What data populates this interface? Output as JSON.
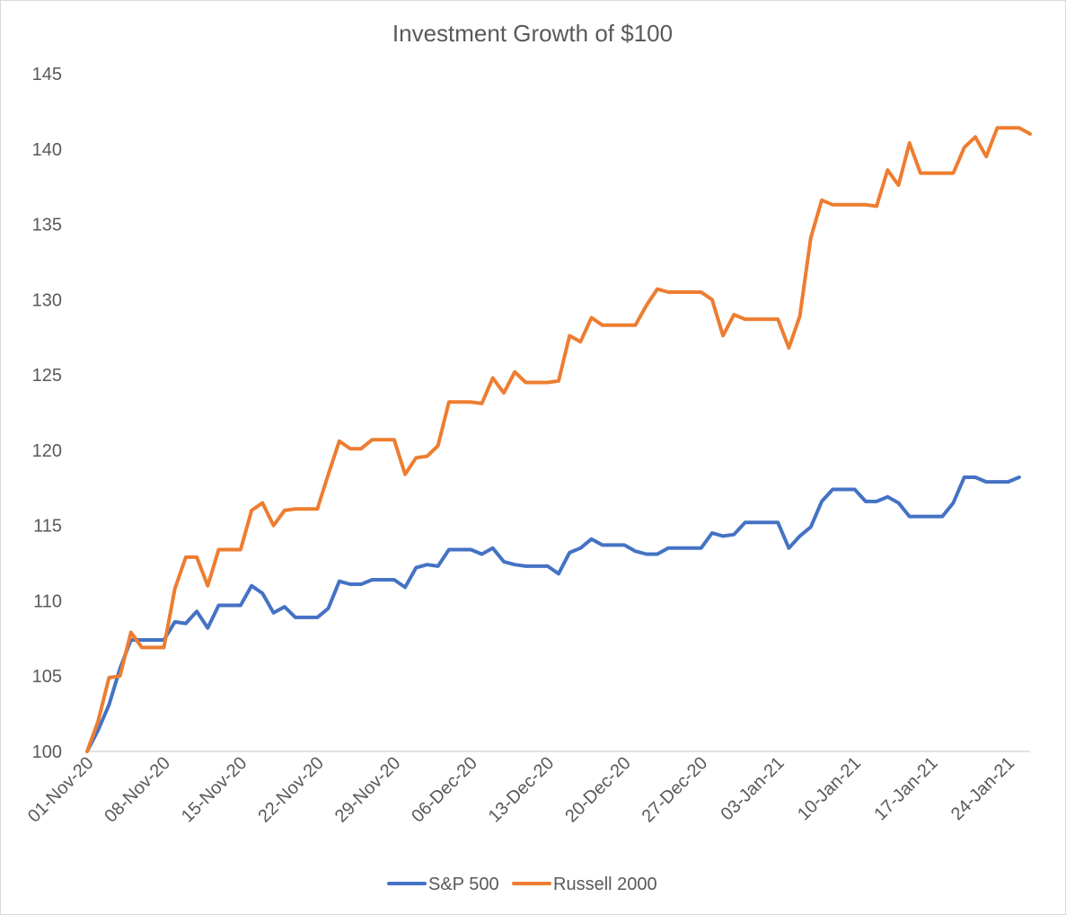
{
  "chart_data": {
    "type": "line",
    "title": "Investment Growth of $100",
    "xlabel": "",
    "ylabel": "",
    "ylim": [
      100,
      145
    ],
    "y_ticks": [
      100,
      105,
      110,
      115,
      120,
      125,
      130,
      135,
      140,
      145
    ],
    "grid": false,
    "legend_position": "bottom",
    "x_start": "01-Nov-20",
    "x_end": "26-Jan-21",
    "x_tick_labels": [
      "01-Nov-20",
      "08-Nov-20",
      "15-Nov-20",
      "22-Nov-20",
      "29-Nov-20",
      "06-Dec-20",
      "13-Dec-20",
      "20-Dec-20",
      "27-Dec-20",
      "03-Jan-21",
      "10-Jan-21",
      "17-Jan-21",
      "24-Jan-21"
    ],
    "series": [
      {
        "name": "S&P 500",
        "color": "#4472c4",
        "points": [
          [
            "01-Nov-20",
            100.0
          ],
          [
            "02-Nov-20",
            101.4
          ],
          [
            "03-Nov-20",
            103.1
          ],
          [
            "04-Nov-20",
            105.5
          ],
          [
            "05-Nov-20",
            107.4
          ],
          [
            "06-Nov-20",
            107.4
          ],
          [
            "07-Nov-20",
            107.4
          ],
          [
            "08-Nov-20",
            107.4
          ],
          [
            "09-Nov-20",
            108.6
          ],
          [
            "10-Nov-20",
            108.5
          ],
          [
            "11-Nov-20",
            109.3
          ],
          [
            "12-Nov-20",
            108.2
          ],
          [
            "13-Nov-20",
            109.7
          ],
          [
            "14-Nov-20",
            109.7
          ],
          [
            "15-Nov-20",
            109.7
          ],
          [
            "16-Nov-20",
            111.0
          ],
          [
            "17-Nov-20",
            110.5
          ],
          [
            "18-Nov-20",
            109.2
          ],
          [
            "19-Nov-20",
            109.6
          ],
          [
            "20-Nov-20",
            108.9
          ],
          [
            "21-Nov-20",
            108.9
          ],
          [
            "22-Nov-20",
            108.9
          ],
          [
            "23-Nov-20",
            109.5
          ],
          [
            "24-Nov-20",
            111.3
          ],
          [
            "25-Nov-20",
            111.1
          ],
          [
            "26-Nov-20",
            111.1
          ],
          [
            "27-Nov-20",
            111.4
          ],
          [
            "28-Nov-20",
            111.4
          ],
          [
            "29-Nov-20",
            111.4
          ],
          [
            "30-Nov-20",
            110.9
          ],
          [
            "01-Dec-20",
            112.2
          ],
          [
            "02-Dec-20",
            112.4
          ],
          [
            "03-Dec-20",
            112.3
          ],
          [
            "04-Dec-20",
            113.4
          ],
          [
            "05-Dec-20",
            113.4
          ],
          [
            "06-Dec-20",
            113.4
          ],
          [
            "07-Dec-20",
            113.1
          ],
          [
            "08-Dec-20",
            113.5
          ],
          [
            "09-Dec-20",
            112.6
          ],
          [
            "10-Dec-20",
            112.4
          ],
          [
            "11-Dec-20",
            112.3
          ],
          [
            "12-Dec-20",
            112.3
          ],
          [
            "13-Dec-20",
            112.3
          ],
          [
            "14-Dec-20",
            111.8
          ],
          [
            "15-Dec-20",
            113.2
          ],
          [
            "16-Dec-20",
            113.5
          ],
          [
            "17-Dec-20",
            114.1
          ],
          [
            "18-Dec-20",
            113.7
          ],
          [
            "19-Dec-20",
            113.7
          ],
          [
            "20-Dec-20",
            113.7
          ],
          [
            "21-Dec-20",
            113.3
          ],
          [
            "22-Dec-20",
            113.1
          ],
          [
            "23-Dec-20",
            113.1
          ],
          [
            "24-Dec-20",
            113.5
          ],
          [
            "25-Dec-20",
            113.5
          ],
          [
            "26-Dec-20",
            113.5
          ],
          [
            "27-Dec-20",
            113.5
          ],
          [
            "28-Dec-20",
            114.5
          ],
          [
            "29-Dec-20",
            114.3
          ],
          [
            "30-Dec-20",
            114.4
          ],
          [
            "31-Dec-20",
            115.2
          ],
          [
            "01-Jan-21",
            115.2
          ],
          [
            "02-Jan-21",
            115.2
          ],
          [
            "03-Jan-21",
            115.2
          ],
          [
            "04-Jan-21",
            113.5
          ],
          [
            "05-Jan-21",
            114.3
          ],
          [
            "06-Jan-21",
            114.9
          ],
          [
            "07-Jan-21",
            116.6
          ],
          [
            "08-Jan-21",
            117.4
          ],
          [
            "09-Jan-21",
            117.4
          ],
          [
            "10-Jan-21",
            117.4
          ],
          [
            "11-Jan-21",
            116.6
          ],
          [
            "12-Jan-21",
            116.6
          ],
          [
            "13-Jan-21",
            116.9
          ],
          [
            "14-Jan-21",
            116.5
          ],
          [
            "15-Jan-21",
            115.6
          ],
          [
            "16-Jan-21",
            115.6
          ],
          [
            "17-Jan-21",
            115.6
          ],
          [
            "18-Jan-21",
            115.6
          ],
          [
            "19-Jan-21",
            116.5
          ],
          [
            "20-Jan-21",
            118.2
          ],
          [
            "21-Jan-21",
            118.2
          ],
          [
            "22-Jan-21",
            117.9
          ],
          [
            "23-Jan-21",
            117.9
          ],
          [
            "24-Jan-21",
            117.9
          ],
          [
            "25-Jan-21",
            118.2
          ]
        ]
      },
      {
        "name": "Russell 2000",
        "color": "#ed7d31",
        "points": [
          [
            "01-Nov-20",
            100.0
          ],
          [
            "02-Nov-20",
            102.0
          ],
          [
            "03-Nov-20",
            104.9
          ],
          [
            "04-Nov-20",
            105.0
          ],
          [
            "05-Nov-20",
            107.9
          ],
          [
            "06-Nov-20",
            106.9
          ],
          [
            "07-Nov-20",
            106.9
          ],
          [
            "08-Nov-20",
            106.9
          ],
          [
            "09-Nov-20",
            110.8
          ],
          [
            "10-Nov-20",
            112.9
          ],
          [
            "11-Nov-20",
            112.9
          ],
          [
            "12-Nov-20",
            111.0
          ],
          [
            "13-Nov-20",
            113.4
          ],
          [
            "14-Nov-20",
            113.4
          ],
          [
            "15-Nov-20",
            113.4
          ],
          [
            "16-Nov-20",
            116.0
          ],
          [
            "17-Nov-20",
            116.5
          ],
          [
            "18-Nov-20",
            115.0
          ],
          [
            "19-Nov-20",
            116.0
          ],
          [
            "20-Nov-20",
            116.1
          ],
          [
            "21-Nov-20",
            116.1
          ],
          [
            "22-Nov-20",
            116.1
          ],
          [
            "23-Nov-20",
            118.4
          ],
          [
            "24-Nov-20",
            120.6
          ],
          [
            "25-Nov-20",
            120.1
          ],
          [
            "26-Nov-20",
            120.1
          ],
          [
            "27-Nov-20",
            120.7
          ],
          [
            "28-Nov-20",
            120.7
          ],
          [
            "29-Nov-20",
            120.7
          ],
          [
            "30-Nov-20",
            118.4
          ],
          [
            "01-Dec-20",
            119.5
          ],
          [
            "02-Dec-20",
            119.6
          ],
          [
            "03-Dec-20",
            120.3
          ],
          [
            "04-Dec-20",
            123.2
          ],
          [
            "05-Dec-20",
            123.2
          ],
          [
            "06-Dec-20",
            123.2
          ],
          [
            "07-Dec-20",
            123.1
          ],
          [
            "08-Dec-20",
            124.8
          ],
          [
            "09-Dec-20",
            123.8
          ],
          [
            "10-Dec-20",
            125.2
          ],
          [
            "11-Dec-20",
            124.5
          ],
          [
            "12-Dec-20",
            124.5
          ],
          [
            "13-Dec-20",
            124.5
          ],
          [
            "14-Dec-20",
            124.6
          ],
          [
            "15-Dec-20",
            127.6
          ],
          [
            "16-Dec-20",
            127.2
          ],
          [
            "17-Dec-20",
            128.8
          ],
          [
            "18-Dec-20",
            128.3
          ],
          [
            "19-Dec-20",
            128.3
          ],
          [
            "20-Dec-20",
            128.3
          ],
          [
            "21-Dec-20",
            128.3
          ],
          [
            "22-Dec-20",
            129.6
          ],
          [
            "23-Dec-20",
            130.7
          ],
          [
            "24-Dec-20",
            130.5
          ],
          [
            "25-Dec-20",
            130.5
          ],
          [
            "26-Dec-20",
            130.5
          ],
          [
            "27-Dec-20",
            130.5
          ],
          [
            "28-Dec-20",
            130.0
          ],
          [
            "29-Dec-20",
            127.6
          ],
          [
            "30-Dec-20",
            129.0
          ],
          [
            "31-Dec-20",
            128.7
          ],
          [
            "01-Jan-21",
            128.7
          ],
          [
            "02-Jan-21",
            128.7
          ],
          [
            "03-Jan-21",
            128.7
          ],
          [
            "04-Jan-21",
            126.8
          ],
          [
            "05-Jan-21",
            128.9
          ],
          [
            "06-Jan-21",
            134.1
          ],
          [
            "07-Jan-21",
            136.6
          ],
          [
            "08-Jan-21",
            136.3
          ],
          [
            "09-Jan-21",
            136.3
          ],
          [
            "10-Jan-21",
            136.3
          ],
          [
            "11-Jan-21",
            136.3
          ],
          [
            "12-Jan-21",
            136.2
          ],
          [
            "13-Jan-21",
            138.6
          ],
          [
            "14-Jan-21",
            137.6
          ],
          [
            "15-Jan-21",
            140.4
          ],
          [
            "16-Jan-21",
            138.4
          ],
          [
            "17-Jan-21",
            138.4
          ],
          [
            "18-Jan-21",
            138.4
          ],
          [
            "19-Jan-21",
            138.4
          ],
          [
            "20-Jan-21",
            140.1
          ],
          [
            "21-Jan-21",
            140.8
          ],
          [
            "22-Jan-21",
            139.5
          ],
          [
            "23-Jan-21",
            141.4
          ],
          [
            "24-Jan-21",
            141.4
          ],
          [
            "25-Jan-21",
            141.4
          ],
          [
            "26-Jan-21",
            141.0
          ]
        ]
      }
    ]
  }
}
